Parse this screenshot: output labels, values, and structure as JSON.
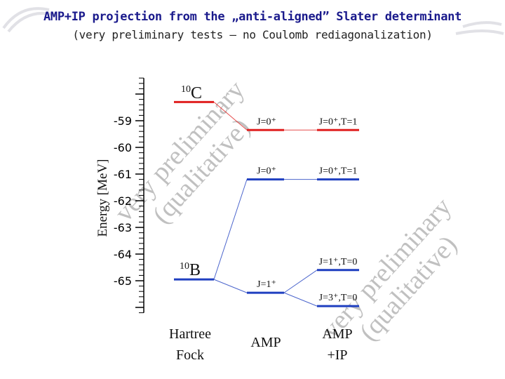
{
  "title": "AMP+IP projection from the „anti-aligned” Slater determinant",
  "subtitle": "(very preliminary tests – no Coulomb rediagonalization)",
  "watermarks": [
    {
      "line1": "very preliminary",
      "line2": "(qualitative)"
    },
    {
      "line1": "very preliminary",
      "line2": "(qualitative)"
    }
  ],
  "chart_data": {
    "type": "level-diagram",
    "ylabel": "Energy [MeV]",
    "yticks": [
      -59,
      -60,
      -61,
      -62,
      -63,
      -64,
      -65
    ],
    "ylim": [
      -66.2,
      -57.4
    ],
    "columns": [
      {
        "label_top": "Hartree",
        "label_bottom": "Fock"
      },
      {
        "label_top": "AMP",
        "label_bottom": ""
      },
      {
        "label_top": "AMP",
        "label_bottom": "+IP"
      }
    ],
    "nuclei": [
      {
        "mass": "10",
        "symbol": "C",
        "color": "#e02020"
      },
      {
        "mass": "10",
        "symbol": "B",
        "color": "#1f3fc0"
      }
    ],
    "levels": [
      {
        "col": 0,
        "energy": -58.3,
        "color": "#e02020",
        "label": ""
      },
      {
        "col": 1,
        "energy": -59.35,
        "color": "#e02020",
        "label": "J=0⁺"
      },
      {
        "col": 2,
        "energy": -59.35,
        "color": "#e02020",
        "label": "J=0⁺,T=1"
      },
      {
        "col": 1,
        "energy": -61.2,
        "color": "#1f3fc0",
        "label": "J=0⁺"
      },
      {
        "col": 2,
        "energy": -61.2,
        "color": "#1f3fc0",
        "label": "J=0⁺,T=1"
      },
      {
        "col": 0,
        "energy": -64.95,
        "color": "#1f3fc0",
        "label": ""
      },
      {
        "col": 1,
        "energy": -65.45,
        "color": "#1f3fc0",
        "label": "J=1⁺"
      },
      {
        "col": 2,
        "energy": -64.6,
        "color": "#1f3fc0",
        "label": "J=1⁺,T=0"
      },
      {
        "col": 2,
        "energy": -65.95,
        "color": "#1f3fc0",
        "label": "J=3⁺,T=0"
      }
    ],
    "connectors": [
      {
        "from": 0,
        "to": 1
      },
      {
        "from": 1,
        "to": 2
      },
      {
        "from": 5,
        "to": 3
      },
      {
        "from": 5,
        "to": 6
      },
      {
        "from": 3,
        "to": 4
      },
      {
        "from": 6,
        "to": 7
      },
      {
        "from": 6,
        "to": 8
      }
    ]
  }
}
